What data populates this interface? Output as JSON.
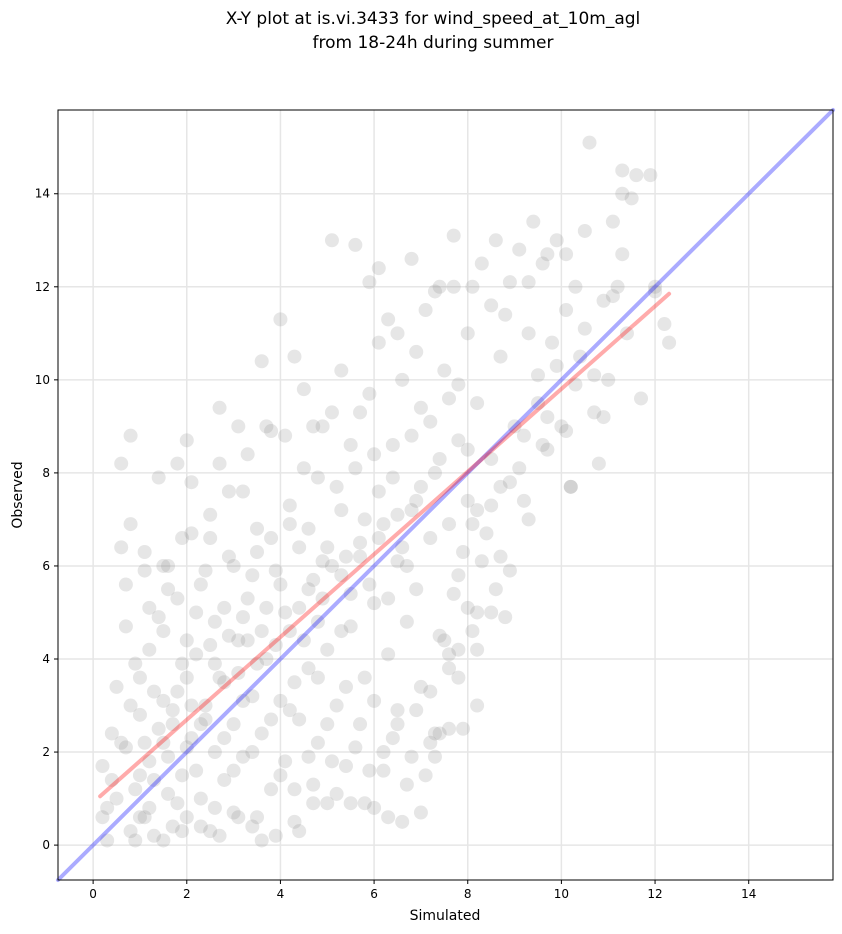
{
  "chart_data": {
    "type": "scatter",
    "title": [
      "X-Y plot at is.vi.3433 for wind_speed_at_10m_agl",
      "from 18-24h during summer"
    ],
    "xlabel": "Simulated",
    "ylabel": "Observed",
    "xlim": [
      -0.75,
      15.8
    ],
    "ylim": [
      -0.75,
      15.8
    ],
    "xticks": [
      0,
      2,
      4,
      6,
      8,
      10,
      12,
      14
    ],
    "yticks": [
      0,
      2,
      4,
      6,
      8,
      10,
      12,
      14
    ],
    "grid": true,
    "point_color": "#808080",
    "points": [
      [
        0.2,
        1.7
      ],
      [
        0.3,
        0.8
      ],
      [
        0.4,
        2.4
      ],
      [
        0.5,
        3.4
      ],
      [
        0.6,
        6.4
      ],
      [
        0.6,
        8.2
      ],
      [
        0.7,
        2.1
      ],
      [
        0.7,
        4.7
      ],
      [
        0.8,
        8.8
      ],
      [
        0.8,
        6.9
      ],
      [
        0.9,
        1.2
      ],
      [
        0.9,
        3.9
      ],
      [
        1.0,
        0.6
      ],
      [
        1.0,
        2.8
      ],
      [
        1.1,
        6.3
      ],
      [
        1.2,
        5.1
      ],
      [
        1.2,
        1.8
      ],
      [
        1.3,
        0.2
      ],
      [
        1.3,
        3.3
      ],
      [
        1.4,
        7.9
      ],
      [
        1.5,
        2.2
      ],
      [
        1.5,
        4.6
      ],
      [
        1.6,
        1.1
      ],
      [
        1.6,
        6.0
      ],
      [
        1.7,
        0.4
      ],
      [
        1.7,
        2.9
      ],
      [
        1.8,
        5.3
      ],
      [
        1.8,
        8.2
      ],
      [
        1.9,
        1.5
      ],
      [
        2.0,
        3.6
      ],
      [
        2.0,
        8.7
      ],
      [
        2.0,
        0.6
      ],
      [
        2.1,
        6.7
      ],
      [
        2.1,
        2.3
      ],
      [
        2.2,
        4.1
      ],
      [
        2.3,
        1.0
      ],
      [
        2.3,
        5.6
      ],
      [
        2.4,
        3.0
      ],
      [
        2.5,
        0.3
      ],
      [
        2.5,
        7.1
      ],
      [
        2.6,
        2.0
      ],
      [
        2.6,
        4.8
      ],
      [
        2.7,
        9.4
      ],
      [
        2.8,
        1.4
      ],
      [
        2.8,
        3.5
      ],
      [
        2.9,
        6.2
      ],
      [
        3.0,
        0.7
      ],
      [
        3.0,
        2.6
      ],
      [
        3.1,
        4.4
      ],
      [
        3.2,
        7.6
      ],
      [
        3.2,
        1.9
      ],
      [
        3.3,
        5.3
      ],
      [
        3.4,
        3.2
      ],
      [
        3.4,
        0.4
      ],
      [
        3.5,
        6.8
      ],
      [
        3.6,
        2.4
      ],
      [
        3.6,
        10.4
      ],
      [
        3.7,
        4.0
      ],
      [
        3.8,
        1.2
      ],
      [
        3.8,
        8.9
      ],
      [
        3.9,
        5.9
      ],
      [
        4.0,
        3.1
      ],
      [
        4.0,
        11.3
      ],
      [
        4.1,
        1.8
      ],
      [
        4.2,
        7.3
      ],
      [
        4.2,
        4.6
      ],
      [
        4.3,
        0.5
      ],
      [
        4.4,
        6.4
      ],
      [
        4.4,
        2.7
      ],
      [
        4.5,
        9.8
      ],
      [
        4.6,
        3.8
      ],
      [
        4.6,
        5.5
      ],
      [
        4.7,
        1.3
      ],
      [
        4.8,
        7.9
      ],
      [
        4.8,
        2.2
      ],
      [
        4.9,
        6.1
      ],
      [
        5.0,
        4.2
      ],
      [
        5.0,
        0.9
      ],
      [
        5.1,
        9.3
      ],
      [
        5.1,
        13.0
      ],
      [
        5.2,
        3.0
      ],
      [
        5.3,
        5.8
      ],
      [
        5.3,
        7.2
      ],
      [
        5.4,
        1.7
      ],
      [
        5.5,
        4.7
      ],
      [
        5.5,
        8.6
      ],
      [
        5.6,
        12.9
      ],
      [
        5.7,
        2.6
      ],
      [
        5.7,
        6.5
      ],
      [
        5.8,
        3.6
      ],
      [
        5.9,
        9.7
      ],
      [
        5.9,
        12.1
      ],
      [
        6.0,
        0.8
      ],
      [
        6.0,
        5.2
      ],
      [
        6.1,
        12.4
      ],
      [
        6.1,
        7.6
      ],
      [
        6.2,
        2.0
      ],
      [
        6.3,
        4.1
      ],
      [
        6.3,
        11.3
      ],
      [
        6.4,
        8.6
      ],
      [
        6.5,
        6.1
      ],
      [
        6.5,
        2.9
      ],
      [
        6.6,
        10.0
      ],
      [
        6.7,
        4.8
      ],
      [
        6.7,
        1.3
      ],
      [
        6.8,
        12.6
      ],
      [
        6.8,
        7.2
      ],
      [
        6.9,
        5.5
      ],
      [
        7.0,
        3.4
      ],
      [
        7.0,
        9.4
      ],
      [
        7.1,
        11.5
      ],
      [
        7.2,
        6.6
      ],
      [
        7.2,
        2.2
      ],
      [
        7.3,
        8.0
      ],
      [
        7.4,
        4.5
      ],
      [
        7.4,
        12.0
      ],
      [
        7.5,
        10.2
      ],
      [
        7.6,
        6.9
      ],
      [
        7.6,
        3.8
      ],
      [
        7.7,
        13.1
      ],
      [
        7.8,
        8.7
      ],
      [
        7.8,
        5.8
      ],
      [
        7.9,
        2.5
      ],
      [
        8.0,
        11.0
      ],
      [
        8.0,
        7.4
      ],
      [
        8.1,
        4.6
      ],
      [
        8.2,
        9.5
      ],
      [
        8.2,
        3.0
      ],
      [
        8.3,
        12.5
      ],
      [
        8.4,
        6.7
      ],
      [
        8.5,
        8.3
      ],
      [
        8.5,
        5.0
      ],
      [
        8.6,
        13.0
      ],
      [
        8.7,
        10.5
      ],
      [
        8.7,
        7.7
      ],
      [
        8.8,
        11.4
      ],
      [
        8.9,
        5.9
      ],
      [
        9.0,
        9.0
      ],
      [
        9.1,
        12.8
      ],
      [
        9.2,
        8.8
      ],
      [
        9.3,
        11.0
      ],
      [
        9.4,
        13.4
      ],
      [
        9.5,
        9.5
      ],
      [
        9.6,
        12.5
      ],
      [
        9.7,
        8.5
      ],
      [
        9.8,
        10.8
      ],
      [
        9.9,
        13.0
      ],
      [
        10.0,
        9.0
      ],
      [
        10.1,
        11.5
      ],
      [
        10.2,
        7.7
      ],
      [
        10.3,
        12.0
      ],
      [
        10.4,
        10.5
      ],
      [
        10.5,
        13.2
      ],
      [
        10.6,
        15.1
      ],
      [
        10.7,
        9.3
      ],
      [
        10.8,
        8.2
      ],
      [
        10.9,
        11.7
      ],
      [
        11.0,
        10.0
      ],
      [
        11.1,
        13.4
      ],
      [
        11.2,
        12.0
      ],
      [
        11.3,
        14.5
      ],
      [
        11.4,
        11.0
      ],
      [
        11.5,
        13.9
      ],
      [
        11.6,
        14.4
      ],
      [
        11.7,
        9.6
      ],
      [
        11.9,
        14.4
      ],
      [
        12.0,
        12.0
      ],
      [
        12.2,
        11.2
      ],
      [
        12.3,
        10.8
      ],
      [
        11.3,
        14.0
      ],
      [
        0.3,
        0.1
      ],
      [
        0.5,
        1.0
      ],
      [
        0.8,
        0.3
      ],
      [
        1.0,
        1.5
      ],
      [
        1.2,
        0.8
      ],
      [
        1.4,
        2.5
      ],
      [
        1.6,
        1.9
      ],
      [
        1.8,
        0.9
      ],
      [
        2.0,
        2.1
      ],
      [
        2.2,
        1.6
      ],
      [
        2.4,
        2.7
      ],
      [
        2.6,
        0.8
      ],
      [
        2.8,
        2.3
      ],
      [
        3.0,
        1.6
      ],
      [
        3.2,
        3.1
      ],
      [
        3.4,
        2.0
      ],
      [
        3.6,
        0.1
      ],
      [
        3.8,
        2.7
      ],
      [
        4.0,
        1.5
      ],
      [
        4.2,
        2.9
      ],
      [
        4.4,
        0.3
      ],
      [
        4.6,
        1.9
      ],
      [
        4.8,
        3.6
      ],
      [
        5.0,
        2.6
      ],
      [
        5.2,
        1.1
      ],
      [
        5.4,
        3.4
      ],
      [
        5.6,
        2.1
      ],
      [
        5.8,
        0.9
      ],
      [
        6.0,
        3.1
      ],
      [
        6.2,
        1.6
      ],
      [
        6.4,
        2.3
      ],
      [
        6.6,
        0.5
      ],
      [
        6.8,
        1.9
      ],
      [
        7.0,
        0.7
      ],
      [
        7.2,
        3.3
      ],
      [
        7.4,
        2.4
      ],
      [
        7.6,
        4.1
      ],
      [
        7.8,
        3.6
      ],
      [
        8.0,
        5.1
      ],
      [
        8.2,
        4.2
      ],
      [
        0.4,
        1.4
      ],
      [
        0.6,
        2.2
      ],
      [
        0.8,
        3.0
      ],
      [
        1.0,
        3.6
      ],
      [
        1.2,
        4.2
      ],
      [
        1.4,
        4.9
      ],
      [
        1.6,
        5.5
      ],
      [
        1.8,
        3.3
      ],
      [
        2.0,
        4.4
      ],
      [
        2.2,
        5.0
      ],
      [
        2.4,
        5.9
      ],
      [
        2.6,
        3.9
      ],
      [
        2.8,
        5.1
      ],
      [
        3.0,
        6.0
      ],
      [
        3.2,
        4.9
      ],
      [
        3.4,
        5.8
      ],
      [
        3.6,
        4.6
      ],
      [
        3.8,
        6.6
      ],
      [
        4.0,
        5.6
      ],
      [
        4.2,
        6.9
      ],
      [
        4.4,
        5.1
      ],
      [
        4.6,
        6.8
      ],
      [
        4.8,
        4.8
      ],
      [
        5.0,
        6.4
      ],
      [
        5.2,
        7.7
      ],
      [
        5.4,
        6.2
      ],
      [
        5.6,
        8.1
      ],
      [
        5.8,
        7.0
      ],
      [
        6.0,
        8.4
      ],
      [
        6.2,
        6.9
      ],
      [
        6.4,
        7.9
      ],
      [
        6.6,
        6.4
      ],
      [
        6.8,
        8.8
      ],
      [
        7.0,
        7.7
      ],
      [
        7.2,
        9.1
      ],
      [
        7.4,
        8.3
      ],
      [
        7.6,
        9.6
      ],
      [
        7.8,
        9.9
      ],
      [
        8.0,
        8.5
      ],
      [
        8.2,
        7.2
      ],
      [
        1.1,
        2.2
      ],
      [
        1.3,
        1.4
      ],
      [
        1.5,
        3.1
      ],
      [
        1.7,
        2.6
      ],
      [
        1.9,
        3.9
      ],
      [
        2.1,
        3.0
      ],
      [
        2.3,
        2.6
      ],
      [
        2.5,
        4.3
      ],
      [
        2.7,
        3.6
      ],
      [
        2.9,
        4.5
      ],
      [
        3.1,
        3.7
      ],
      [
        3.3,
        4.4
      ],
      [
        3.5,
        3.9
      ],
      [
        3.7,
        5.1
      ],
      [
        3.9,
        4.3
      ],
      [
        4.1,
        5.0
      ],
      [
        4.3,
        3.5
      ],
      [
        4.5,
        4.4
      ],
      [
        4.7,
        5.7
      ],
      [
        4.9,
        5.3
      ],
      [
        5.1,
        6.0
      ],
      [
        5.3,
        4.6
      ],
      [
        5.5,
        5.4
      ],
      [
        5.7,
        6.2
      ],
      [
        5.9,
        5.6
      ],
      [
        6.1,
        6.6
      ],
      [
        6.3,
        5.3
      ],
      [
        6.5,
        7.1
      ],
      [
        6.7,
        6.0
      ],
      [
        6.9,
        7.4
      ],
      [
        0.2,
        0.6
      ],
      [
        0.9,
        0.1
      ],
      [
        1.1,
        0.6
      ],
      [
        1.5,
        0.1
      ],
      [
        1.9,
        0.3
      ],
      [
        2.3,
        0.4
      ],
      [
        2.7,
        0.2
      ],
      [
        3.1,
        0.6
      ],
      [
        3.5,
        0.6
      ],
      [
        3.9,
        0.2
      ],
      [
        4.3,
        1.2
      ],
      [
        4.7,
        0.9
      ],
      [
        5.1,
        1.8
      ],
      [
        5.5,
        0.9
      ],
      [
        5.9,
        1.6
      ],
      [
        6.3,
        0.6
      ],
      [
        6.5,
        2.6
      ],
      [
        6.9,
        2.9
      ],
      [
        7.1,
        1.5
      ],
      [
        7.3,
        1.9
      ],
      [
        7.5,
        4.4
      ],
      [
        7.7,
        5.4
      ],
      [
        7.9,
        6.3
      ],
      [
        8.1,
        6.9
      ],
      [
        8.3,
        6.1
      ],
      [
        8.5,
        7.3
      ],
      [
        8.7,
        6.2
      ],
      [
        8.9,
        7.8
      ],
      [
        9.1,
        8.1
      ],
      [
        9.3,
        7.0
      ],
      [
        9.5,
        10.1
      ],
      [
        9.7,
        9.2
      ],
      [
        9.9,
        10.3
      ],
      [
        10.1,
        8.9
      ],
      [
        10.3,
        9.9
      ],
      [
        10.5,
        11.1
      ],
      [
        10.7,
        10.1
      ],
      [
        10.9,
        9.2
      ],
      [
        11.1,
        11.8
      ],
      [
        11.3,
        12.7
      ],
      [
        7.3,
        2.4
      ],
      [
        7.6,
        2.5
      ],
      [
        7.8,
        4.2
      ],
      [
        8.2,
        5.0
      ],
      [
        8.6,
        5.5
      ],
      [
        8.8,
        4.9
      ],
      [
        9.2,
        7.4
      ],
      [
        9.6,
        8.6
      ],
      [
        10.2,
        7.7
      ],
      [
        12.0,
        11.9
      ],
      [
        2.5,
        6.6
      ],
      [
        2.9,
        7.6
      ],
      [
        3.3,
        8.4
      ],
      [
        3.7,
        9.0
      ],
      [
        4.1,
        8.8
      ],
      [
        4.5,
        8.1
      ],
      [
        4.9,
        9.0
      ],
      [
        5.3,
        10.2
      ],
      [
        5.7,
        9.3
      ],
      [
        6.1,
        10.8
      ],
      [
        6.5,
        11.0
      ],
      [
        6.9,
        10.6
      ],
      [
        7.3,
        11.9
      ],
      [
        7.7,
        12.0
      ],
      [
        8.1,
        12.0
      ],
      [
        8.5,
        11.6
      ],
      [
        8.9,
        12.1
      ],
      [
        9.3,
        12.1
      ],
      [
        9.7,
        12.7
      ],
      [
        10.1,
        12.7
      ],
      [
        0.7,
        5.6
      ],
      [
        1.1,
        5.9
      ],
      [
        1.5,
        6.0
      ],
      [
        1.9,
        6.6
      ],
      [
        2.1,
        7.8
      ],
      [
        2.7,
        8.2
      ],
      [
        3.1,
        9.0
      ],
      [
        3.5,
        6.3
      ],
      [
        4.3,
        10.5
      ],
      [
        4.7,
        9.0
      ]
    ],
    "reference_line": {
      "from": [
        -0.75,
        -0.75
      ],
      "to": [
        15.8,
        15.8
      ],
      "color": "#0000ff"
    },
    "fit_line": {
      "from": [
        0.15,
        1.05
      ],
      "to": [
        12.3,
        11.85
      ],
      "color": "#ff0000"
    }
  }
}
